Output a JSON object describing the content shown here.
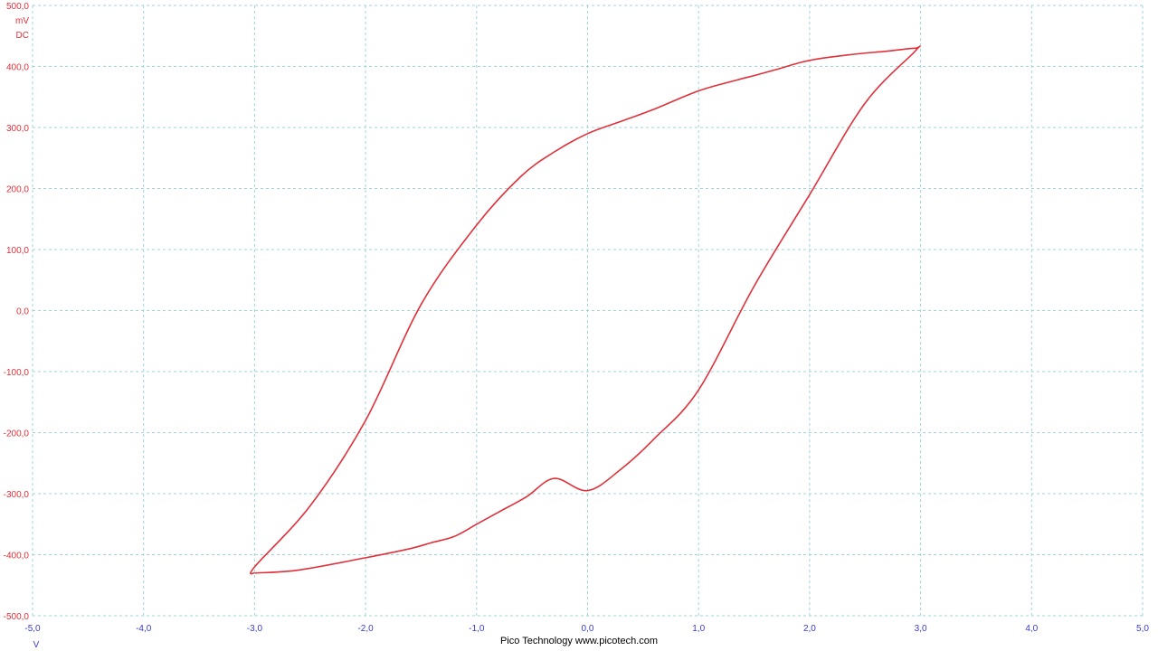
{
  "chart_data": {
    "type": "line",
    "title": "",
    "xlabel": "V",
    "ylabel": "mV",
    "ylabel_extra": "DC",
    "xlim": [
      -5.0,
      5.0
    ],
    "ylim": [
      -500.0,
      500.0
    ],
    "grid": true,
    "x_ticks": [
      "-5,0",
      "-4,0",
      "-3,0",
      "-2,0",
      "-1,0",
      "0,0",
      "1,0",
      "2,0",
      "3,0",
      "4,0",
      "5,0"
    ],
    "y_ticks": [
      "500,0",
      "400,0",
      "300,0",
      "200,0",
      "100,0",
      "0,0",
      "-100,0",
      "-200,0",
      "-300,0",
      "-400,0",
      "-500,0"
    ],
    "colors": {
      "series": "#e0303a",
      "y_axis_text": "#e0303a",
      "x_axis_text": "#3a3ad0",
      "grid": "#9fd4dd"
    },
    "series": [
      {
        "x": [
          -3.0,
          -2.6,
          -2.0,
          -1.6,
          -1.4,
          -1.2,
          -1.0,
          -0.8,
          -0.55,
          -0.3,
          0.0,
          0.3,
          0.6,
          1.0,
          1.5,
          2.0,
          2.5,
          2.95,
          2.95,
          2.7,
          2.4,
          2.0,
          1.7,
          1.5,
          1.35,
          1.0,
          0.6,
          0.3,
          0.0,
          -0.3,
          -0.6,
          -1.0,
          -1.5,
          -2.0,
          -2.5,
          -3.0
        ],
        "y": [
          -430,
          -425,
          -405,
          -390,
          -380,
          -370,
          -350,
          -330,
          -305,
          -275,
          -295,
          -260,
          -210,
          -130,
          40,
          190,
          340,
          425,
          430,
          425,
          420,
          410,
          395,
          385,
          378,
          360,
          330,
          310,
          290,
          260,
          220,
          140,
          10,
          -180,
          -320,
          -420
        ]
      }
    ],
    "credit": "Pico Technology  www.picotech.com"
  }
}
